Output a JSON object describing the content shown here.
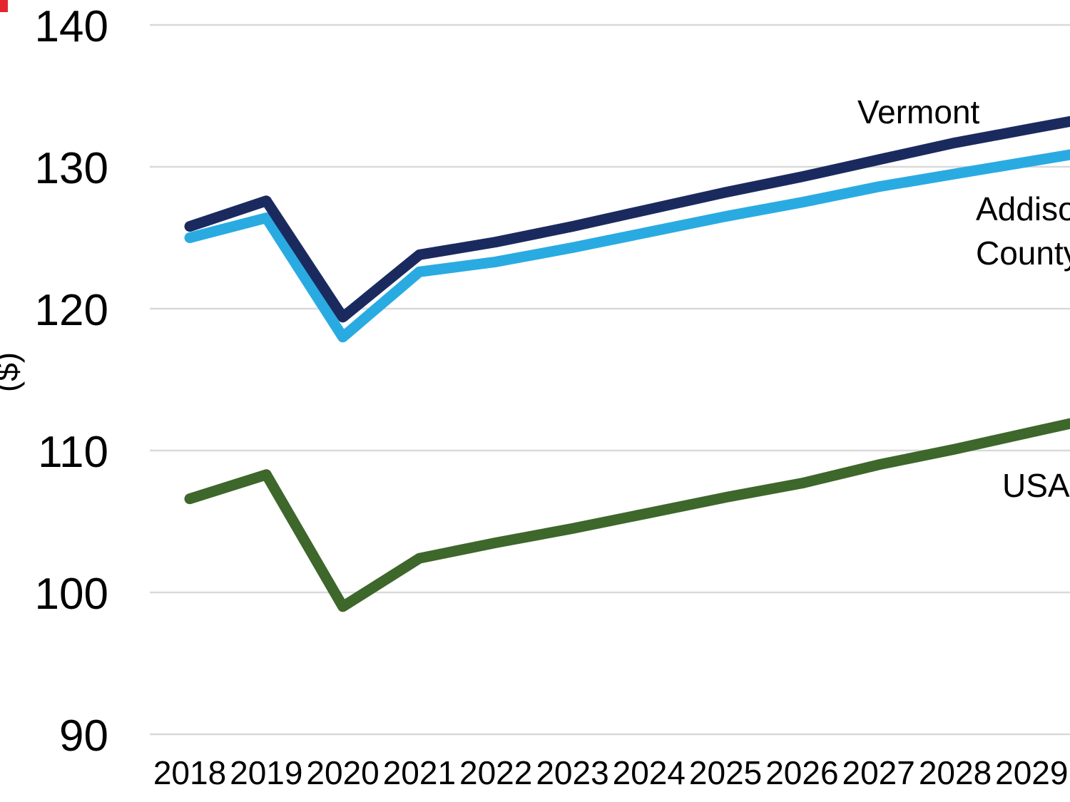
{
  "chart_data": {
    "type": "line",
    "title": "",
    "xlabel": "",
    "ylabel": "($)",
    "x": [
      2018,
      2019,
      2020,
      2021,
      2022,
      2023,
      2024,
      2025,
      2026,
      2027,
      2028,
      2029
    ],
    "series": [
      {
        "name": "Vermont",
        "color": "#1B2A5E",
        "values": [
          125.8,
          127.6,
          119.4,
          123.8,
          124.7,
          125.8,
          127.0,
          128.2,
          129.3,
          130.5,
          131.7,
          132.7
        ]
      },
      {
        "name": "Addison County",
        "color": "#29ABE2",
        "values": [
          125.0,
          126.4,
          118.0,
          122.6,
          123.3,
          124.3,
          125.4,
          126.5,
          127.5,
          128.6,
          129.5,
          130.4
        ]
      },
      {
        "name": "USA",
        "color": "#3E672B",
        "values": [
          106.6,
          108.3,
          99.0,
          102.4,
          103.5,
          104.5,
          105.6,
          106.7,
          107.7,
          109.0,
          110.1,
          111.3
        ]
      }
    ],
    "ylim": [
      90,
      140
    ],
    "yticks": [
      90,
      100,
      110,
      120,
      130,
      140
    ],
    "grid": true,
    "legend_position": "inline-labels",
    "notes": "lines continue past 2029 to the cropped right edge of the image"
  },
  "colors": {
    "gridline": "#D9D9D9",
    "text": "#000000",
    "corner_fragment": "#E4262C"
  }
}
